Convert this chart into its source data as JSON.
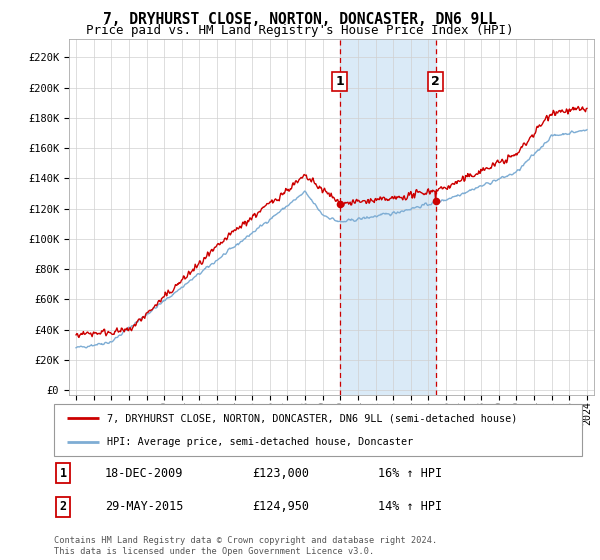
{
  "title": "7, DRYHURST CLOSE, NORTON, DONCASTER, DN6 9LL",
  "subtitle": "Price paid vs. HM Land Registry's House Price Index (HPI)",
  "yticks": [
    0,
    20000,
    40000,
    60000,
    80000,
    100000,
    120000,
    140000,
    160000,
    180000,
    200000,
    220000
  ],
  "ytick_labels": [
    "£0",
    "£20K",
    "£40K",
    "£60K",
    "£80K",
    "£100K",
    "£120K",
    "£140K",
    "£160K",
    "£180K",
    "£200K",
    "£220K"
  ],
  "ylim": [
    -3000,
    232000
  ],
  "xlim_min": 1994.6,
  "xlim_max": 2024.4,
  "purchase1_date": 2009.96,
  "purchase1_price": 123000,
  "purchase1_label": "1",
  "purchase2_date": 2015.42,
  "purchase2_price": 124950,
  "purchase2_label": "2",
  "sale_color": "#cc0000",
  "hpi_color": "#7eadd4",
  "highlight_color": "#daeaf7",
  "legend_property_label": "7, DRYHURST CLOSE, NORTON, DONCASTER, DN6 9LL (semi-detached house)",
  "legend_hpi_label": "HPI: Average price, semi-detached house, Doncaster",
  "table_row1": [
    "1",
    "18-DEC-2009",
    "£123,000",
    "16% ↑ HPI"
  ],
  "table_row2": [
    "2",
    "29-MAY-2015",
    "£124,950",
    "14% ↑ HPI"
  ],
  "footnote": "Contains HM Land Registry data © Crown copyright and database right 2024.\nThis data is licensed under the Open Government Licence v3.0.",
  "grid_color": "#d0d0d0",
  "title_fontsize": 10.5,
  "subtitle_fontsize": 9,
  "tick_fontsize": 7.5,
  "label_fontsize": 8.5
}
